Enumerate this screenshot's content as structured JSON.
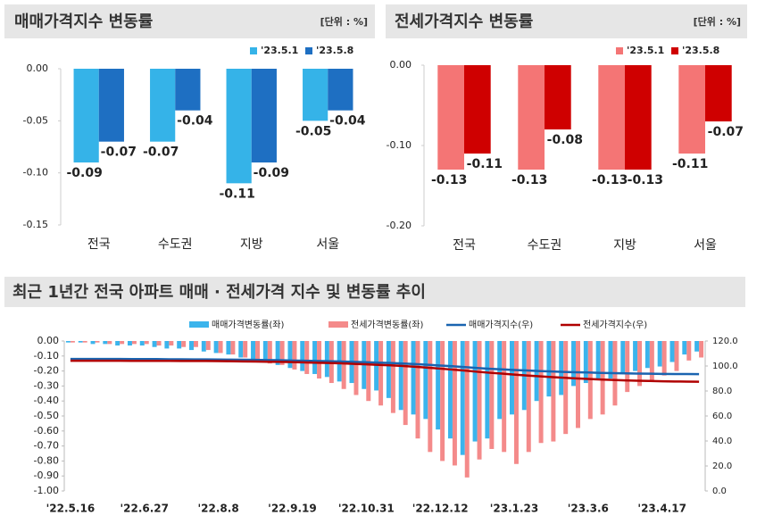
{
  "chart_data": [
    {
      "type": "bar",
      "title": "매매가격지수 변동률",
      "unit": "[단위 : %]",
      "categories": [
        "전국",
        "수도권",
        "지방",
        "서울"
      ],
      "series": [
        {
          "name": "'23.5.1",
          "color": "#35b3e8",
          "values": [
            -0.09,
            -0.07,
            -0.11,
            -0.05
          ]
        },
        {
          "name": "'23.5.8",
          "color": "#1e6fc2",
          "values": [
            -0.07,
            -0.04,
            -0.09,
            -0.04
          ]
        }
      ],
      "ylim": [
        -0.15,
        0
      ],
      "yticks": [
        {
          "value": 0,
          "label": "0.00"
        },
        {
          "value": -0.05,
          "label": "-0.05"
        },
        {
          "value": -0.1,
          "label": "-0.10"
        },
        {
          "value": -0.15,
          "label": "-0.15"
        }
      ],
      "grid": false
    },
    {
      "type": "bar",
      "title": "전세가격지수 변동률",
      "unit": "[단위 : %]",
      "categories": [
        "전국",
        "수도권",
        "지방",
        "서울"
      ],
      "series": [
        {
          "name": "'23.5.1",
          "color": "#f47575",
          "values": [
            -0.13,
            -0.13,
            -0.13,
            -0.11
          ]
        },
        {
          "name": "'23.5.8",
          "color": "#cf0000",
          "values": [
            -0.11,
            -0.08,
            -0.13,
            -0.07
          ]
        }
      ],
      "ylim": [
        -0.2,
        0
      ],
      "yticks": [
        {
          "value": 0,
          "label": "0.00"
        },
        {
          "value": -0.1,
          "label": "-0.10"
        },
        {
          "value": -0.2,
          "label": "-0.20"
        }
      ],
      "grid": false
    },
    {
      "type": "combo",
      "title": "최근 1년간 전국 아파트 매매 · 전세가격 지수 및 변동률 추이",
      "categories": [
        "'22.5.16",
        null,
        null,
        null,
        null,
        null,
        "'22.6.27",
        null,
        null,
        null,
        null,
        null,
        "'22.8.8",
        null,
        null,
        null,
        null,
        null,
        "'22.9.19",
        null,
        null,
        null,
        null,
        null,
        "'22.10.31",
        null,
        null,
        null,
        null,
        null,
        "'22.12.12",
        null,
        null,
        null,
        null,
        null,
        "'23.1.23",
        null,
        null,
        null,
        null,
        null,
        "'23.3.6",
        null,
        null,
        null,
        null,
        null,
        "'23.4.17",
        null,
        null,
        null
      ],
      "series": [
        {
          "name": "매매가격변동률(좌)",
          "type": "bar",
          "color": "#3bb4ec",
          "values": [
            -0.01,
            -0.01,
            -0.02,
            -0.02,
            -0.03,
            -0.03,
            -0.03,
            -0.04,
            -0.05,
            -0.05,
            -0.06,
            -0.07,
            -0.08,
            -0.09,
            -0.11,
            -0.13,
            -0.14,
            -0.16,
            -0.18,
            -0.2,
            -0.22,
            -0.24,
            -0.27,
            -0.28,
            -0.32,
            -0.33,
            -0.38,
            -0.46,
            -0.49,
            -0.52,
            -0.59,
            -0.65,
            -0.76,
            -0.67,
            -0.65,
            -0.52,
            -0.49,
            -0.46,
            -0.4,
            -0.37,
            -0.36,
            -0.3,
            -0.28,
            -0.25,
            -0.25,
            -0.22,
            -0.2,
            -0.18,
            -0.17,
            -0.14,
            -0.09,
            -0.07
          ]
        },
        {
          "name": "전세가격변동률(좌)",
          "type": "bar",
          "color": "#f48a8a",
          "values": [
            -0.01,
            -0.01,
            -0.01,
            -0.02,
            -0.02,
            -0.02,
            -0.02,
            -0.03,
            -0.03,
            -0.04,
            -0.04,
            -0.06,
            -0.08,
            -0.09,
            -0.11,
            -0.13,
            -0.15,
            -0.16,
            -0.19,
            -0.22,
            -0.25,
            -0.28,
            -0.32,
            -0.36,
            -0.4,
            -0.43,
            -0.48,
            -0.56,
            -0.65,
            -0.74,
            -0.8,
            -0.83,
            -0.91,
            -0.79,
            -0.72,
            -0.74,
            -0.82,
            -0.74,
            -0.68,
            -0.67,
            -0.62,
            -0.58,
            -0.52,
            -0.49,
            -0.43,
            -0.34,
            -0.3,
            -0.27,
            -0.23,
            -0.2,
            -0.13,
            -0.11
          ]
        },
        {
          "name": "매매가격지수(우)",
          "type": "line",
          "axis": "y2",
          "color": "#1a64b0",
          "values": [
            105.6,
            105.6,
            105.6,
            105.6,
            105.6,
            105.5,
            105.5,
            105.5,
            105.4,
            105.4,
            105.3,
            105.3,
            105.2,
            105.1,
            105.0,
            104.9,
            104.7,
            104.6,
            104.4,
            104.2,
            104.0,
            103.8,
            103.6,
            103.3,
            103.0,
            102.7,
            102.4,
            102.0,
            101.5,
            101.0,
            100.4,
            99.8,
            99.1,
            98.4,
            97.8,
            97.3,
            96.8,
            96.4,
            96.0,
            95.6,
            95.3,
            95.0,
            94.8,
            94.5,
            94.3,
            94.1,
            93.9,
            93.8,
            93.7,
            93.6,
            93.6,
            93.5
          ]
        },
        {
          "name": "전세가격지수(우)",
          "type": "line",
          "axis": "y2",
          "color": "#b00000",
          "values": [
            104.2,
            104.2,
            104.2,
            104.2,
            104.2,
            104.1,
            104.1,
            104.1,
            104.1,
            104.0,
            104.0,
            104.0,
            103.9,
            103.8,
            103.7,
            103.6,
            103.4,
            103.3,
            103.1,
            102.9,
            102.6,
            102.4,
            102.1,
            101.7,
            101.3,
            100.9,
            100.5,
            100.0,
            99.4,
            98.7,
            97.9,
            97.1,
            96.3,
            95.4,
            94.6,
            93.9,
            93.1,
            92.4,
            91.8,
            91.2,
            90.6,
            90.1,
            89.6,
            89.2,
            88.8,
            88.5,
            88.2,
            88.0,
            87.8,
            87.6,
            87.5,
            87.4
          ]
        }
      ],
      "ylim": [
        -1,
        0
      ],
      "yticks": [
        {
          "value": 0,
          "label": "0.00"
        },
        {
          "value": -0.1,
          "label": "-0.10"
        },
        {
          "value": -0.2,
          "label": "-0.20"
        },
        {
          "value": -0.3,
          "label": "-0.30"
        },
        {
          "value": -0.4,
          "label": "-0.40"
        },
        {
          "value": -0.5,
          "label": "-0.50"
        },
        {
          "value": -0.6,
          "label": "-0.60"
        },
        {
          "value": -0.7,
          "label": "-0.70"
        },
        {
          "value": -0.8,
          "label": "-0.80"
        },
        {
          "value": -0.9,
          "label": "-0.90"
        },
        {
          "value": -1,
          "label": "-1.00"
        }
      ],
      "y2lim": [
        0,
        120
      ],
      "y2ticks": [
        {
          "value": 0,
          "label": "0.0"
        },
        {
          "value": 20,
          "label": "20.0"
        },
        {
          "value": 40,
          "label": "40.0"
        },
        {
          "value": 60,
          "label": "60.0"
        },
        {
          "value": 80,
          "label": "80.0"
        },
        {
          "value": 100,
          "label": "100.0"
        },
        {
          "value": 120,
          "label": "120.0"
        }
      ],
      "grid": false
    }
  ]
}
